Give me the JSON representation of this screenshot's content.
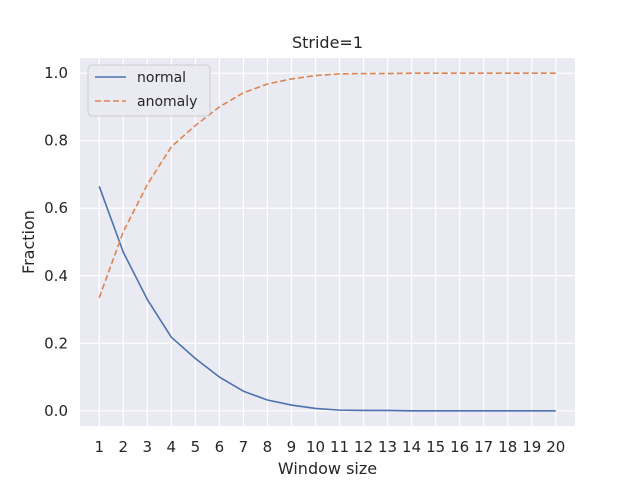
{
  "chart_data": {
    "type": "line",
    "title": "Stride=1",
    "xlabel": "Window size",
    "ylabel": "Fraction",
    "x": [
      1,
      2,
      3,
      4,
      5,
      6,
      7,
      8,
      9,
      10,
      11,
      12,
      13,
      14,
      15,
      16,
      17,
      18,
      19,
      20
    ],
    "xlim": [
      0.2,
      20.8
    ],
    "ylim": [
      -0.045,
      1.045
    ],
    "yticks": [
      0.0,
      0.2,
      0.4,
      0.6,
      0.8,
      1.0
    ],
    "ytick_labels": [
      "0.0",
      "0.2",
      "0.4",
      "0.6",
      "0.8",
      "1.0"
    ],
    "grid": true,
    "legend": "top-left",
    "series": [
      {
        "name": "normal",
        "color": "#4c72b0",
        "style": "solid",
        "values": [
          0.665,
          0.47,
          0.33,
          0.218,
          0.155,
          0.1,
          0.058,
          0.032,
          0.017,
          0.007,
          0.002,
          0.001,
          0.001,
          0.0,
          0.0,
          0.0,
          0.0,
          0.0,
          0.0,
          0.0
        ]
      },
      {
        "name": "anomaly",
        "color": "#dd8452",
        "style": "dashed",
        "values": [
          0.335,
          0.53,
          0.67,
          0.782,
          0.845,
          0.9,
          0.942,
          0.968,
          0.983,
          0.993,
          0.998,
          0.999,
          0.999,
          1.0,
          1.0,
          1.0,
          1.0,
          1.0,
          1.0,
          1.0
        ]
      }
    ]
  }
}
